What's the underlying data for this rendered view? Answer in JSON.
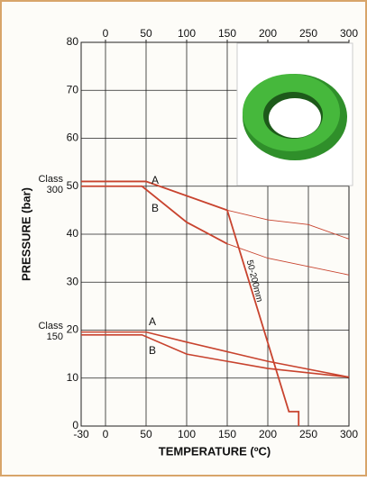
{
  "chart_data": {
    "type": "line",
    "xlabel": "TEMPERATURE (ºC)",
    "ylabel": "PRESSURE (bar)",
    "xlim": [
      -30,
      300
    ],
    "xticks": [
      -30,
      0,
      50,
      100,
      150,
      200,
      250,
      300
    ],
    "x2ticks": [
      0,
      50,
      100,
      150,
      200,
      250,
      300
    ],
    "ylim": [
      0,
      80
    ],
    "yticks": [
      0,
      10,
      20,
      30,
      40,
      50,
      60,
      70,
      80
    ],
    "grid": true,
    "series": [
      {
        "color": "#c8432e",
        "width": 1.8,
        "x": [
          -30,
          50,
          150
        ],
        "values": [
          51,
          51,
          45
        ]
      },
      {
        "color": "#c8432e",
        "width": 0.9,
        "x": [
          150,
          200,
          250,
          300
        ],
        "values": [
          45,
          43,
          42,
          39
        ]
      },
      {
        "color": "#c8432e",
        "width": 1.8,
        "x": [
          -30,
          45,
          100,
          150
        ],
        "values": [
          50,
          50,
          42.5,
          38
        ]
      },
      {
        "color": "#c8432e",
        "width": 0.9,
        "x": [
          150,
          200,
          300
        ],
        "values": [
          38,
          35,
          31.5
        ]
      },
      {
        "color": "#c8432e",
        "width": 1.8,
        "x": [
          150,
          226,
          238,
          238
        ],
        "values": [
          45,
          3,
          3,
          0
        ]
      },
      {
        "color": "#c8432e",
        "width": 1.6,
        "x": [
          -30,
          50,
          100,
          150,
          200,
          300
        ],
        "values": [
          19.6,
          19.6,
          17.5,
          15.5,
          13.5,
          10.2
        ]
      },
      {
        "color": "#c8432e",
        "width": 1.6,
        "x": [
          -30,
          45,
          100,
          150,
          200,
          300
        ],
        "values": [
          19,
          19,
          15,
          13.5,
          12,
          10.2
        ]
      }
    ],
    "annotations": [
      "A",
      "B",
      "A",
      "B",
      "50-200mm"
    ],
    "class_300": [
      "Class",
      "300"
    ],
    "class_150": [
      "Class",
      "150"
    ]
  }
}
